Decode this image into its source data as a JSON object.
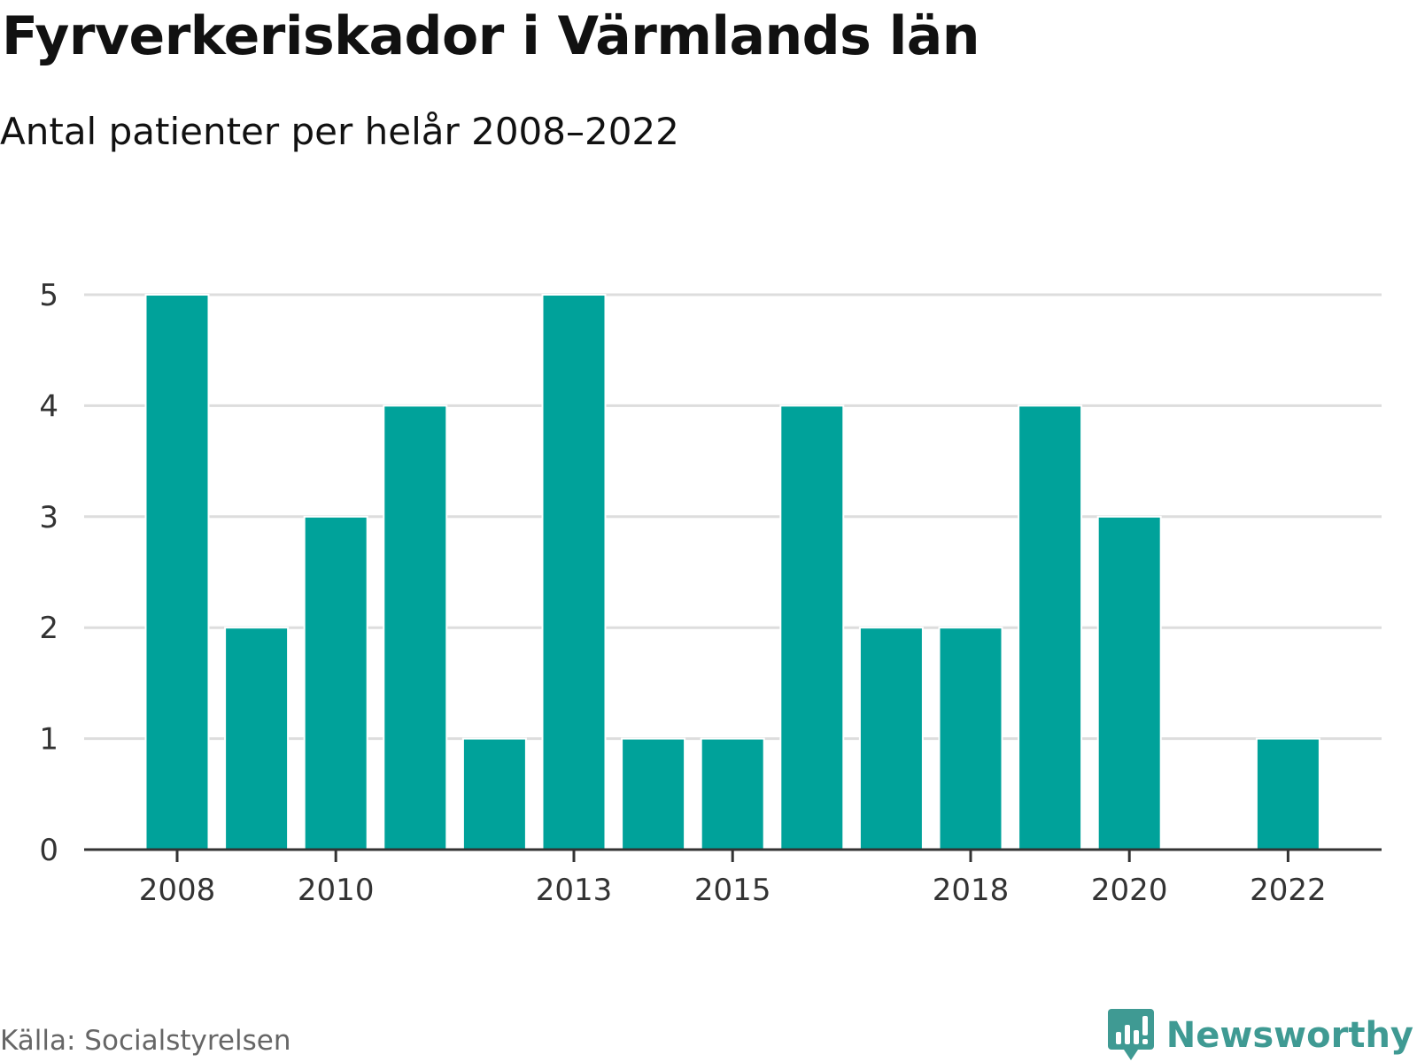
{
  "title": "Fyrverkeriskador i Värmlands län",
  "subtitle": "Antal patienter per helår 2008–2022",
  "source": "Källa: Socialstyrelsen",
  "brand": {
    "name": "Newsworthy",
    "icon": "bar-chart-logo-icon",
    "color": "#3f9a93"
  },
  "colors": {
    "bar": "#00a29a",
    "grid": "#dddddd",
    "axis": "#333333"
  },
  "chart_data": {
    "type": "bar",
    "title": "Fyrverkeriskador i Värmlands län",
    "subtitle": "Antal patienter per helår 2008–2022",
    "xlabel": "",
    "ylabel": "",
    "categories": [
      "2008",
      "2009",
      "2010",
      "2011",
      "2012",
      "2013",
      "2014",
      "2015",
      "2016",
      "2017",
      "2018",
      "2019",
      "2020",
      "2021",
      "2022"
    ],
    "values": [
      5,
      2,
      3,
      4,
      1,
      5,
      1,
      1,
      4,
      2,
      2,
      4,
      3,
      0,
      1
    ],
    "x_tick_labels": [
      "2008",
      "2010",
      "2013",
      "2015",
      "2018",
      "2020",
      "2022"
    ],
    "y_ticks": [
      0,
      1,
      2,
      3,
      4,
      5
    ],
    "ylim": [
      0,
      5
    ],
    "grid": true,
    "legend": "none"
  }
}
